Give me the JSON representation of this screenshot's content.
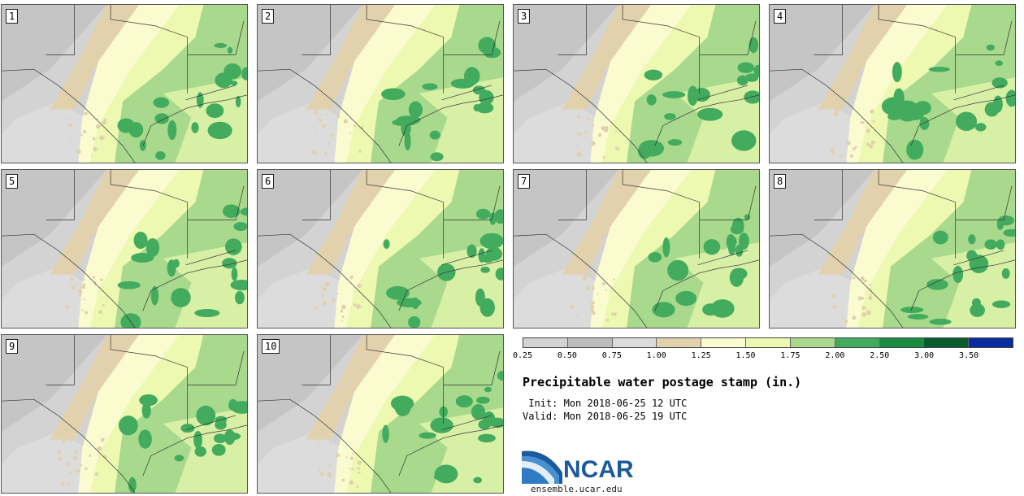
{
  "panels": [
    {
      "label": "1"
    },
    {
      "label": "2"
    },
    {
      "label": "3"
    },
    {
      "label": "4"
    },
    {
      "label": "5"
    },
    {
      "label": "6"
    },
    {
      "label": "7"
    },
    {
      "label": "8"
    },
    {
      "label": "9"
    },
    {
      "label": "10"
    }
  ],
  "legend": {
    "colors": [
      "#d3d3d3",
      "#bdbdbd",
      "#dcdcdc",
      "#e2d1ad",
      "#fbfbd0",
      "#edf8b1",
      "#a8d98c",
      "#42ab5d",
      "#1b8a41",
      "#0a5c2c",
      "#0b2c9c"
    ],
    "ticks": [
      "0.25",
      "0.50",
      "0.75",
      "1.00",
      "1.25",
      "1.50",
      "1.75",
      "2.00",
      "2.50",
      "3.00",
      "3.50"
    ]
  },
  "title": "Precipitable water postage stamp (in.)",
  "init_line": " Init: Mon 2018-06-25 12 UTC",
  "valid_line": "Valid: Mon 2018-06-25 19 UTC",
  "logo_text": "NCAR",
  "site": "ensemble.ucar.edu"
}
